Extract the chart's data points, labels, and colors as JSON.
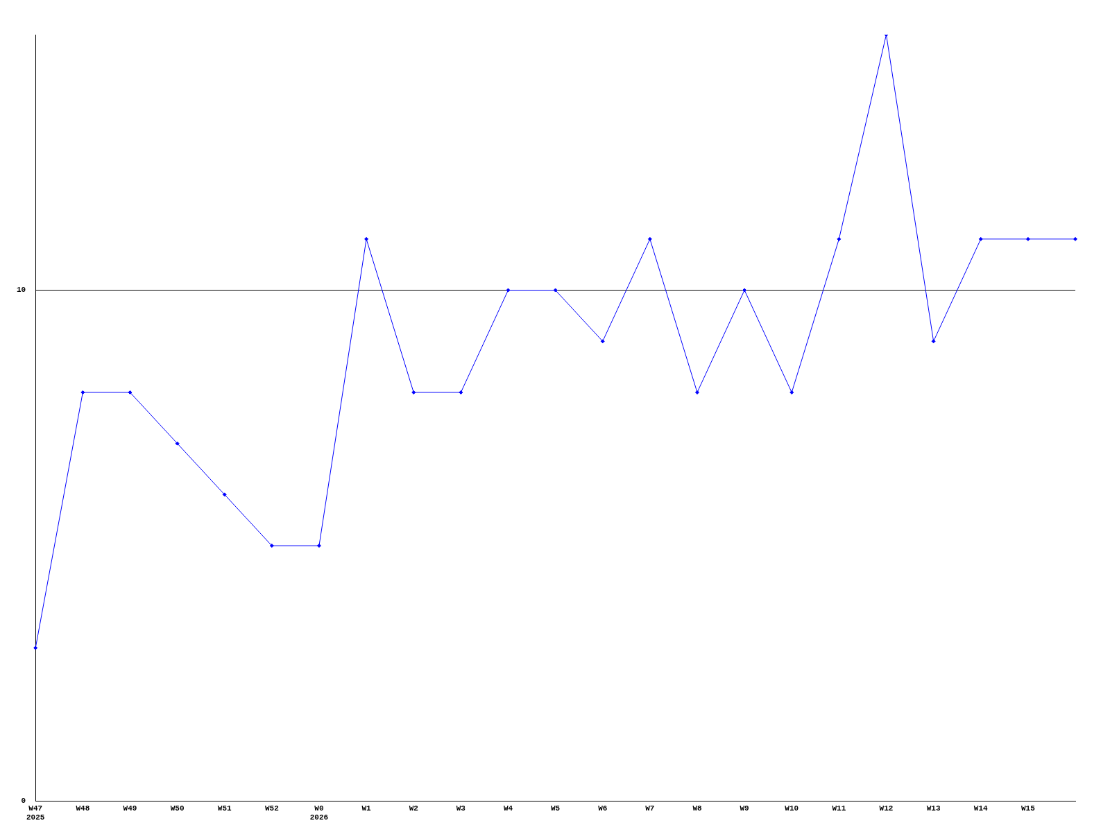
{
  "chart_data": {
    "type": "line",
    "categories": [
      "W47\n2025",
      "W48",
      "W49",
      "W50",
      "W51",
      "W52",
      "W0\n2026",
      "W1",
      "W2",
      "W3",
      "W4",
      "W5",
      "W6",
      "W7",
      "W8",
      "W9",
      "W10",
      "W11",
      "W12",
      "W13",
      "W14",
      "W15",
      null
    ],
    "series": [
      {
        "color": "#0000ff",
        "values": [
          3,
          8,
          8,
          7,
          6,
          5,
          5,
          11,
          8,
          8,
          10,
          10,
          9,
          11,
          8,
          10,
          8,
          11,
          15,
          9,
          11,
          11,
          11
        ]
      }
    ],
    "ylim": [
      0,
      15
    ],
    "yticks": [
      0,
      10
    ],
    "grid": "y",
    "marker": "diamond",
    "line_style": "solid",
    "legend": false
  }
}
